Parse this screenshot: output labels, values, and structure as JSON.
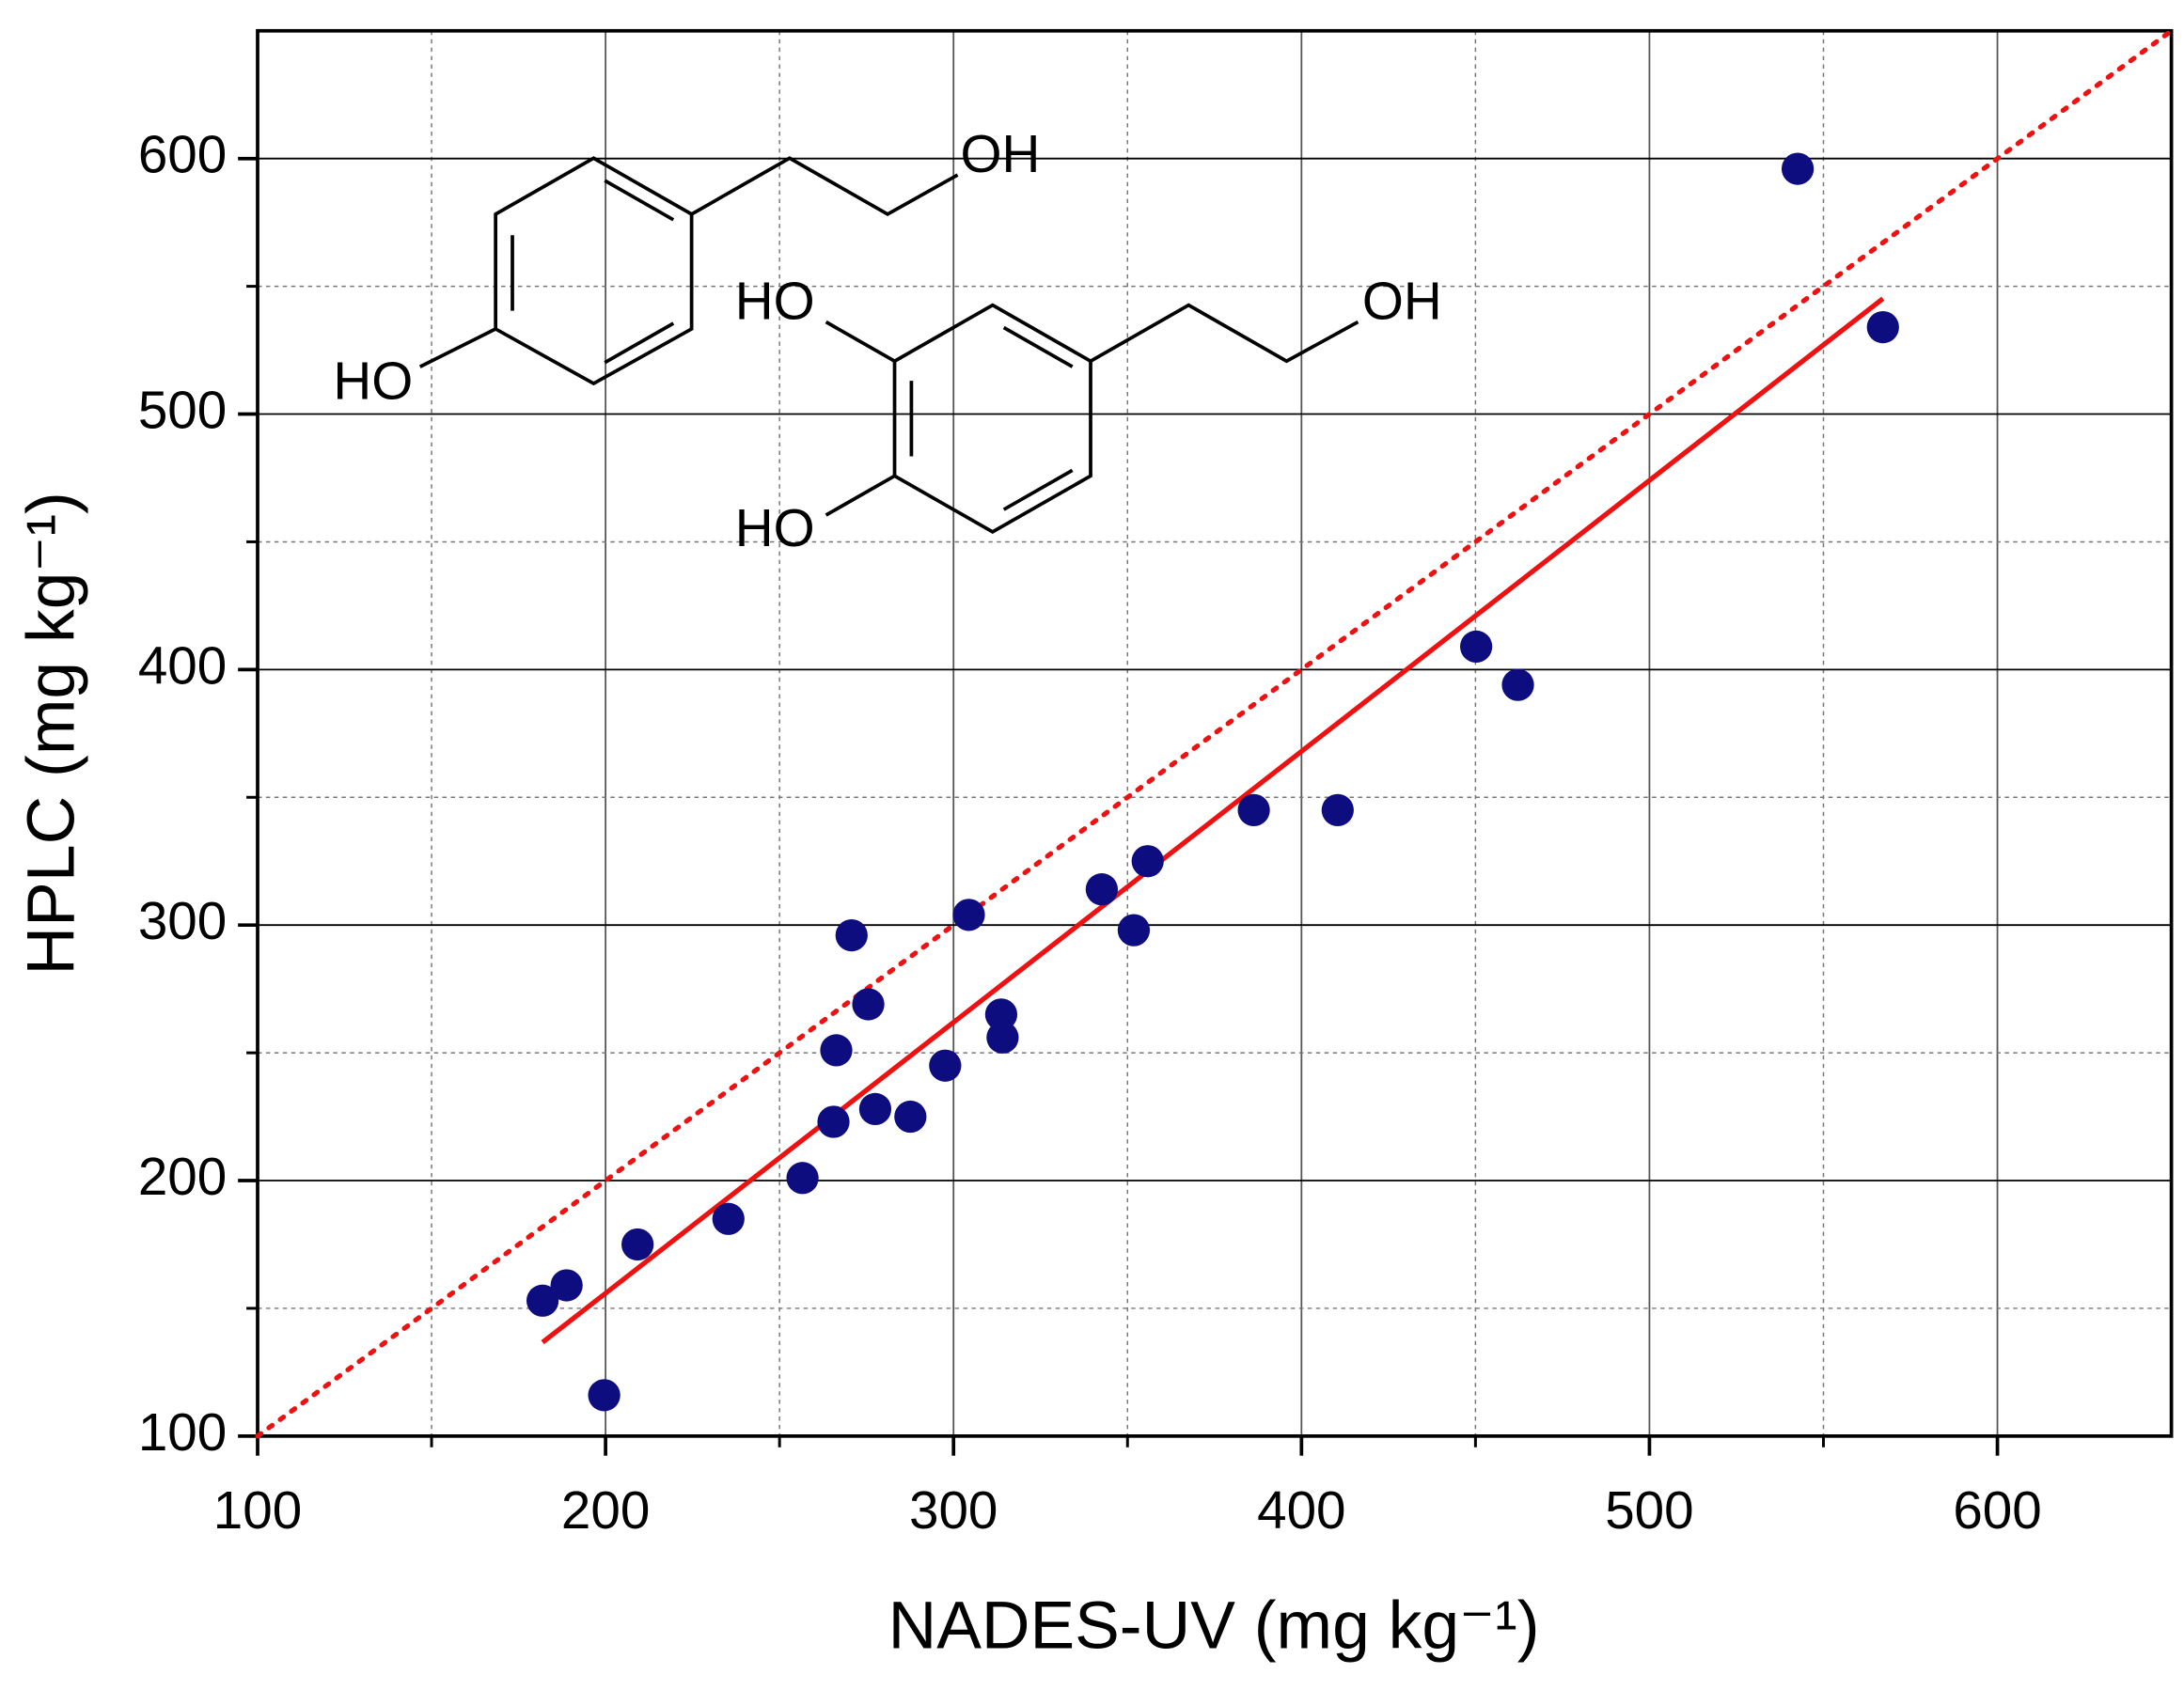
{
  "chart_data": {
    "type": "scatter",
    "x_label": "NADES-UV (mg kg⁻¹)",
    "y_label": "HPLC (mg kg⁻¹)",
    "annotations": [
      "OH",
      "HO",
      "HO",
      "OH",
      "HO"
    ],
    "x": [
      181.9,
      188.8,
      199.6,
      209.2,
      235.3,
      256.6,
      265.5,
      266.3,
      270.7,
      275.5,
      277.5,
      287.6,
      297.6,
      304.4,
      313.7,
      314.1,
      342.6,
      351.8,
      355.8,
      386.3,
      410.4,
      450.2,
      462.2,
      542.6,
      567.1
    ],
    "values": [
      153,
      159,
      116,
      175,
      185,
      201,
      223,
      251,
      296,
      269,
      228,
      225,
      245,
      304,
      265,
      256,
      314,
      298,
      325,
      345,
      345,
      409,
      394,
      596,
      534
    ],
    "color": "#0d0d80",
    "fit": {
      "x": [
        181.9,
        567.1
      ],
      "values": [
        136.7,
        545.2
      ],
      "color": "#ee1111",
      "style": "solid"
    },
    "reference": {
      "x": [
        100,
        650
      ],
      "values": [
        100,
        650
      ],
      "color": "#ee1111",
      "style": "dotted"
    },
    "xlim": [
      100,
      650
    ],
    "ylim": [
      100,
      650
    ],
    "xticks": [
      100,
      200,
      300,
      400,
      500,
      600
    ],
    "yticks": [
      100,
      200,
      300,
      400,
      500,
      600
    ],
    "grid": true
  }
}
